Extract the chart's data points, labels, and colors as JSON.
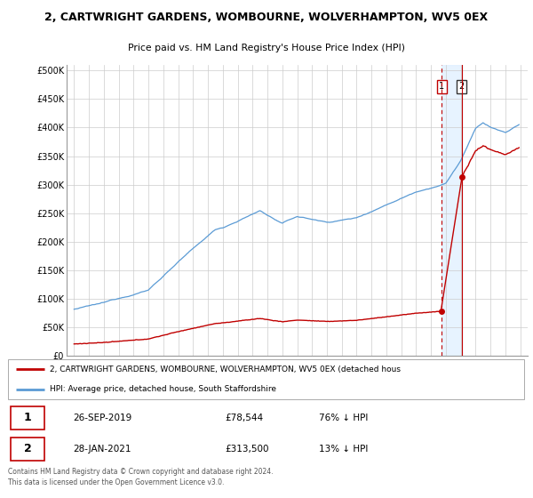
{
  "title_line1": "2, CARTWRIGHT GARDENS, WOMBOURNE, WOLVERHAMPTON, WV5 0EX",
  "title_line2": "Price paid vs. HM Land Registry's House Price Index (HPI)",
  "yticks": [
    0,
    50000,
    100000,
    150000,
    200000,
    250000,
    300000,
    350000,
    400000,
    450000,
    500000
  ],
  "ytick_labels": [
    "£0",
    "£50K",
    "£100K",
    "£150K",
    "£200K",
    "£250K",
    "£300K",
    "£350K",
    "£400K",
    "£450K",
    "£500K"
  ],
  "hpi_color": "#5b9bd5",
  "price_color": "#c00000",
  "vline1_color": "#c00000",
  "vline2_color": "#c00000",
  "shade_color": "#ddeeff",
  "bg_color": "#ffffff",
  "plot_bg_color": "#ffffff",
  "grid_color": "#cccccc",
  "legend_label_1": "2, CARTWRIGHT GARDENS, WOMBOURNE, WOLVERHAMPTON, WV5 0EX (detached hous",
  "legend_label_2": "HPI: Average price, detached house, South Staffordshire",
  "point1_year": 2019.73,
  "point1_price": 78544,
  "point1_date": "26-SEP-2019",
  "point1_hpi_pct": "76% ↓ HPI",
  "point2_year": 2021.07,
  "point2_price": 313500,
  "point2_date": "28-JAN-2021",
  "point2_hpi_pct": "13% ↓ HPI",
  "footnote": "Contains HM Land Registry data © Crown copyright and database right 2024.\nThis data is licensed under the Open Government Licence v3.0."
}
